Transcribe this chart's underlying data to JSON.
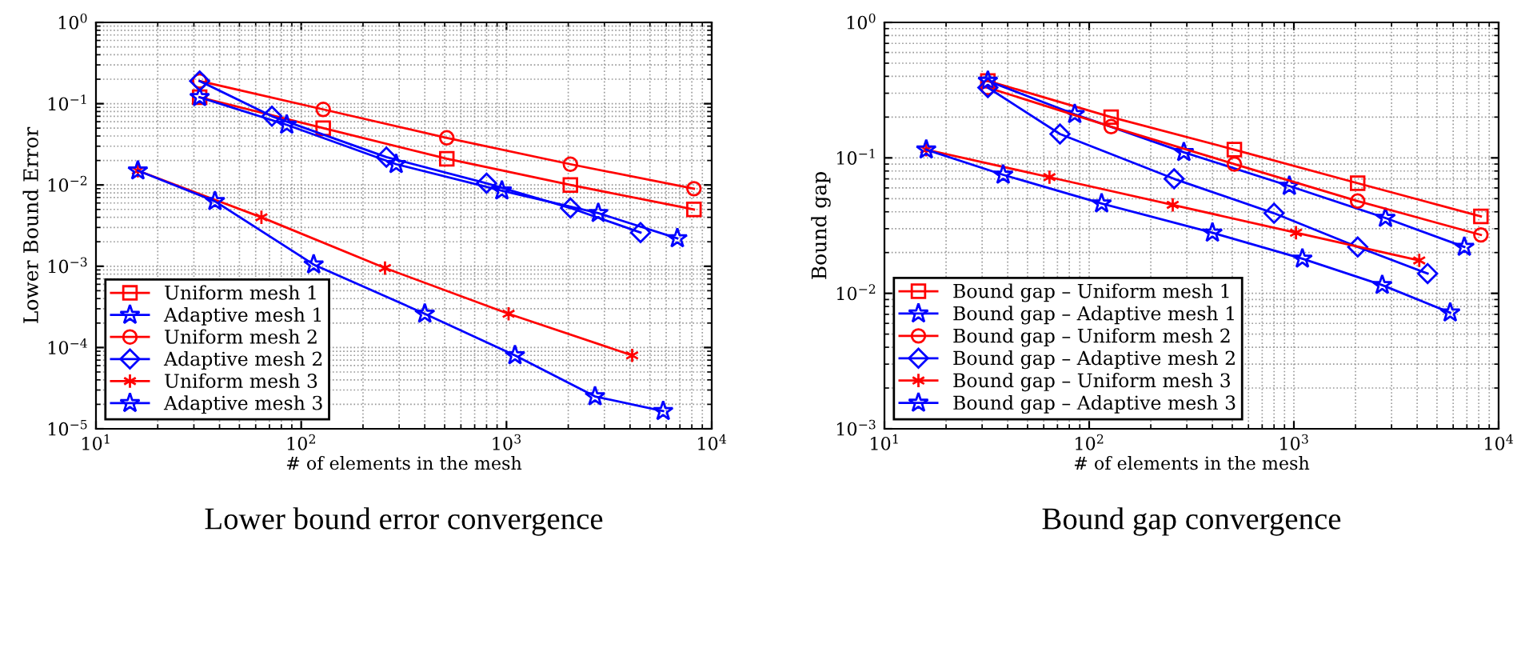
{
  "chart_data": [
    {
      "type": "line",
      "ylabel": "Lower Bound Error",
      "xlabel": "# of elements in the mesh",
      "annotations": [
        "Lower bound error convergence"
      ],
      "log": "xy",
      "grid": true,
      "legend": "bottom left",
      "line_style": "solid",
      "xlim": [
        10,
        10000
      ],
      "ylim": [
        1e-05,
        1
      ],
      "xticks": [
        {
          "value": 10,
          "label": "10$^{1}$"
        },
        {
          "value": 100,
          "label": "10$^{2}$"
        },
        {
          "value": 1000,
          "label": "10$^{3}$"
        },
        {
          "value": 10000,
          "label": "10$^{4}$"
        }
      ],
      "yticks": [
        {
          "value": 1e-05,
          "label": "10$^{−5}$"
        },
        {
          "value": 0.0001,
          "label": "10$^{−4}$"
        },
        {
          "value": 0.001,
          "label": "10$^{−3}$"
        },
        {
          "value": 0.01,
          "label": "10$^{−2}$"
        },
        {
          "value": 0.1,
          "label": "10$^{−1}$"
        },
        {
          "value": 1,
          "label": "10$^{0}$"
        }
      ],
      "series": [
        {
          "name": "Uniform mesh 1",
          "color": "#ff0000",
          "marker": "square",
          "x": [
            32,
            128,
            512,
            2048,
            8192
          ],
          "values": [
            0.12,
            0.05,
            0.021,
            0.01,
            0.005
          ]
        },
        {
          "name": "Adaptive mesh 1",
          "color": "#0000ff",
          "marker": "star",
          "x": [
            32,
            85,
            290,
            950,
            2800,
            6800
          ],
          "values": [
            0.12,
            0.055,
            0.018,
            0.0085,
            0.0045,
            0.0022
          ]
        },
        {
          "name": "Uniform mesh 2",
          "color": "#ff0000",
          "marker": "circle",
          "x": [
            32,
            128,
            512,
            2048,
            8192
          ],
          "values": [
            0.19,
            0.085,
            0.038,
            0.018,
            0.009
          ]
        },
        {
          "name": "Adaptive mesh 2",
          "color": "#0000ff",
          "marker": "diamond",
          "x": [
            32,
            72,
            260,
            800,
            2050,
            4500
          ],
          "values": [
            0.19,
            0.07,
            0.022,
            0.0105,
            0.0052,
            0.0026
          ]
        },
        {
          "name": "Uniform mesh 3",
          "color": "#ff0000",
          "marker": "cross",
          "x": [
            16,
            64,
            256,
            1024,
            4096
          ],
          "values": [
            0.015,
            0.004,
            0.00095,
            0.00026,
            8e-05
          ]
        },
        {
          "name": "Adaptive mesh 3",
          "color": "#0000ff",
          "marker": "star",
          "x": [
            16,
            38,
            115,
            400,
            1100,
            2700,
            5800
          ],
          "values": [
            0.015,
            0.0063,
            0.00105,
            0.00026,
            8e-05,
            2.5e-05,
            1.65e-05
          ]
        }
      ]
    },
    {
      "type": "line",
      "ylabel": "Bound gap",
      "xlabel": "# of elements in the mesh",
      "annotations": [
        "Bound gap convergence"
      ],
      "log": "xy",
      "grid": true,
      "legend": "bottom left",
      "line_style": "solid",
      "xlim": [
        10,
        10000
      ],
      "ylim": [
        0.001,
        1
      ],
      "xticks": [
        {
          "value": 10,
          "label": "10$^{1}$"
        },
        {
          "value": 100,
          "label": "10$^{2}$"
        },
        {
          "value": 1000,
          "label": "10$^{3}$"
        },
        {
          "value": 10000,
          "label": "10$^{4}$"
        }
      ],
      "yticks": [
        {
          "value": 0.001,
          "label": "10$^{−3}$"
        },
        {
          "value": 0.01,
          "label": "10$^{−2}$"
        },
        {
          "value": 0.1,
          "label": "10$^{−1}$"
        },
        {
          "value": 1,
          "label": "10$^{0}$"
        }
      ],
      "series": [
        {
          "name": "Bound gap – Uniform mesh 1",
          "color": "#ff0000",
          "marker": "square",
          "x": [
            32,
            128,
            512,
            2048,
            8192
          ],
          "values": [
            0.37,
            0.2,
            0.115,
            0.065,
            0.037
          ]
        },
        {
          "name": "Bound gap – Adaptive mesh 1",
          "color": "#0000ff",
          "marker": "star",
          "x": [
            32,
            85,
            290,
            950,
            2800,
            6800
          ],
          "values": [
            0.37,
            0.21,
            0.11,
            0.062,
            0.036,
            0.022
          ]
        },
        {
          "name": "Bound gap – Uniform mesh 2",
          "color": "#ff0000",
          "marker": "circle",
          "x": [
            32,
            128,
            512,
            2048,
            8192
          ],
          "values": [
            0.33,
            0.17,
            0.09,
            0.048,
            0.027
          ]
        },
        {
          "name": "Bound gap – Adaptive mesh 2",
          "color": "#0000ff",
          "marker": "diamond",
          "x": [
            32,
            72,
            260,
            800,
            2050,
            4500
          ],
          "values": [
            0.33,
            0.15,
            0.07,
            0.039,
            0.022,
            0.014
          ]
        },
        {
          "name": "Bound gap – Uniform mesh 3",
          "color": "#ff0000",
          "marker": "cross",
          "x": [
            16,
            64,
            256,
            1024,
            4096
          ],
          "values": [
            0.115,
            0.072,
            0.045,
            0.028,
            0.0175
          ]
        },
        {
          "name": "Bound gap – Adaptive mesh 3",
          "color": "#0000ff",
          "marker": "star",
          "x": [
            16,
            38,
            115,
            400,
            1100,
            2700,
            5800
          ],
          "values": [
            0.115,
            0.075,
            0.046,
            0.028,
            0.018,
            0.0115,
            0.0072
          ]
        }
      ]
    }
  ]
}
